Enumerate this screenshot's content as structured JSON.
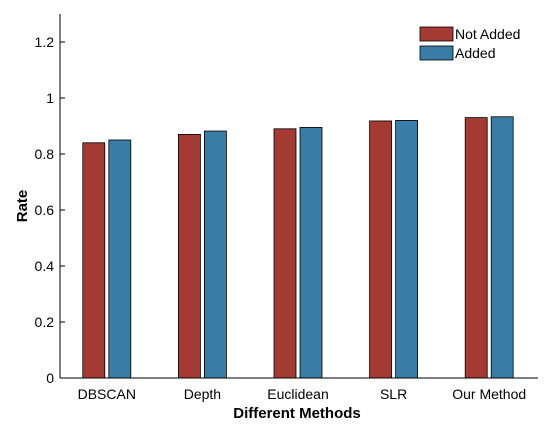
{
  "chart_data": {
    "type": "bar",
    "title": "",
    "xlabel": "Different Methods",
    "ylabel": "Rate",
    "categories": [
      "DBSCAN",
      "Depth",
      "Euclidean",
      "SLR",
      "Our Method"
    ],
    "series": [
      {
        "name": "Not Added",
        "color": "#a33a34",
        "values": [
          0.84,
          0.87,
          0.89,
          0.918,
          0.93
        ]
      },
      {
        "name": "Added",
        "color": "#3a7ca5",
        "values": [
          0.85,
          0.882,
          0.895,
          0.92,
          0.933
        ]
      }
    ],
    "ylim": [
      0,
      1.3
    ],
    "yticks": [
      0,
      0.2,
      0.4,
      0.6,
      0.8,
      1,
      1.2
    ],
    "ytick_labels": [
      "0",
      "0.2",
      "0.4",
      "0.6",
      "0.8",
      "1",
      "1.2"
    ],
    "grid": false,
    "legend": "top-right"
  }
}
